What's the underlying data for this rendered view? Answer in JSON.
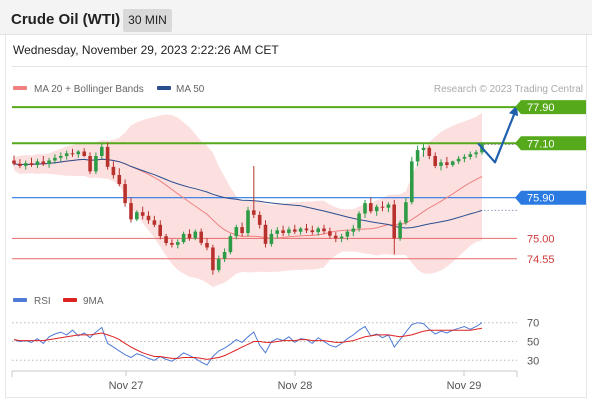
{
  "header": {
    "instrument": "Crude Oil (WTI)",
    "timeframe": "30 MIN",
    "datetime": "Wednesday, November 29, 2023 2:22:26 AM CET"
  },
  "legend": {
    "items": [
      {
        "label": "MA 20 + Bollinger Bands",
        "color": "#f08080"
      },
      {
        "label": "MA 50",
        "color": "#2a4f8f"
      }
    ],
    "credit": "Research © 2023 Trading Central"
  },
  "colors": {
    "up": "#2e9c46",
    "down": "#b8322d",
    "resistance": "#55a91a",
    "pivot": "#2a7ae2",
    "support": "#e86a6a",
    "forecast": "#1f5fae",
    "rsi": "#4f7bd6",
    "rsi_ma": "#dd2222",
    "band_fill": "#fbdada"
  },
  "chart_data": [
    {
      "type": "candlestick",
      "title": "",
      "x_tick_labels": [
        "Nov 27",
        "Nov 28",
        "Nov 29"
      ],
      "ylim": [
        73.95,
        78.1
      ],
      "levels": [
        {
          "label": "77.90",
          "value": 77.9,
          "kind": "resistance"
        },
        {
          "label": "77.10",
          "value": 77.1,
          "kind": "resistance"
        },
        {
          "label": "75.90",
          "value": 75.9,
          "kind": "pivot"
        },
        {
          "label": "75.00",
          "value": 75.0,
          "kind": "support"
        },
        {
          "label": "74.55",
          "value": 74.55,
          "kind": "support"
        }
      ],
      "current_price": 77.08,
      "forecast_path": [
        77.1,
        76.68,
        77.9
      ],
      "candles": [
        [
          76.72,
          76.83,
          76.61,
          76.65
        ],
        [
          76.65,
          76.75,
          76.55,
          76.6
        ],
        [
          76.6,
          76.72,
          76.52,
          76.66
        ],
        [
          76.66,
          76.78,
          76.58,
          76.62
        ],
        [
          76.62,
          76.76,
          76.55,
          76.7
        ],
        [
          76.7,
          76.82,
          76.6,
          76.64
        ],
        [
          76.64,
          76.78,
          76.56,
          76.72
        ],
        [
          76.72,
          76.86,
          76.65,
          76.78
        ],
        [
          76.78,
          76.9,
          76.7,
          76.82
        ],
        [
          76.82,
          76.94,
          76.74,
          76.88
        ],
        [
          76.88,
          76.98,
          76.8,
          76.86
        ],
        [
          76.86,
          76.95,
          76.78,
          76.92
        ],
        [
          76.92,
          76.99,
          76.8,
          76.82
        ],
        [
          76.82,
          76.9,
          76.42,
          76.48
        ],
        [
          76.48,
          76.9,
          76.42,
          76.82
        ],
        [
          76.82,
          77.1,
          76.75,
          77.02
        ],
        [
          77.02,
          77.12,
          76.52,
          76.58
        ],
        [
          76.58,
          76.7,
          76.32,
          76.4
        ],
        [
          76.4,
          76.55,
          76.15,
          76.2
        ],
        [
          76.2,
          76.3,
          75.7,
          75.78
        ],
        [
          75.78,
          75.9,
          75.35,
          75.42
        ],
        [
          75.42,
          75.62,
          75.38,
          75.58
        ],
        [
          75.58,
          75.7,
          75.42,
          75.5
        ],
        [
          75.5,
          75.6,
          75.32,
          75.4
        ],
        [
          75.4,
          75.5,
          75.25,
          75.3
        ],
        [
          75.3,
          75.4,
          74.98,
          75.05
        ],
        [
          75.05,
          75.1,
          74.84,
          74.9
        ],
        [
          74.9,
          74.98,
          74.8,
          74.86
        ],
        [
          74.86,
          74.98,
          74.78,
          74.92
        ],
        [
          74.92,
          75.15,
          74.88,
          75.1
        ],
        [
          75.1,
          75.2,
          74.95,
          75.0
        ],
        [
          75.0,
          75.2,
          74.96,
          75.15
        ],
        [
          75.15,
          75.22,
          74.85,
          74.9
        ],
        [
          74.9,
          75.0,
          74.74,
          74.8
        ],
        [
          74.8,
          74.86,
          74.2,
          74.3
        ],
        [
          74.3,
          74.62,
          74.25,
          74.55
        ],
        [
          74.55,
          74.78,
          74.48,
          74.7
        ],
        [
          74.7,
          75.1,
          74.65,
          75.05
        ],
        [
          75.05,
          75.3,
          74.98,
          75.25
        ],
        [
          75.25,
          75.35,
          75.05,
          75.12
        ],
        [
          75.12,
          75.7,
          75.05,
          75.62
        ],
        [
          75.62,
          76.6,
          75.45,
          75.52
        ],
        [
          75.52,
          75.6,
          75.22,
          75.3
        ],
        [
          75.3,
          75.4,
          74.8,
          74.88
        ],
        [
          74.88,
          75.2,
          74.82,
          75.1
        ],
        [
          75.1,
          75.25,
          75.0,
          75.18
        ],
        [
          75.18,
          75.28,
          75.05,
          75.12
        ],
        [
          75.12,
          75.26,
          75.06,
          75.2
        ],
        [
          75.2,
          75.3,
          75.1,
          75.15
        ],
        [
          75.15,
          75.25,
          75.08,
          75.22
        ],
        [
          75.22,
          75.32,
          75.12,
          75.18
        ],
        [
          75.18,
          75.28,
          75.08,
          75.14
        ],
        [
          75.14,
          75.26,
          75.06,
          75.22
        ],
        [
          75.22,
          75.3,
          75.1,
          75.16
        ],
        [
          75.16,
          75.24,
          75.0,
          75.06
        ],
        [
          75.06,
          75.14,
          74.92,
          75.0
        ],
        [
          75.0,
          75.1,
          74.92,
          75.04
        ],
        [
          75.04,
          75.2,
          74.96,
          75.15
        ],
        [
          75.15,
          75.3,
          75.05,
          75.22
        ],
        [
          75.22,
          75.6,
          75.15,
          75.55
        ],
        [
          75.55,
          75.85,
          75.45,
          75.78
        ],
        [
          75.78,
          75.9,
          75.55,
          75.6
        ],
        [
          75.6,
          75.75,
          75.5,
          75.7
        ],
        [
          75.7,
          75.82,
          75.6,
          75.68
        ],
        [
          75.68,
          75.8,
          75.58,
          75.75
        ],
        [
          75.75,
          75.85,
          74.65,
          75.0
        ],
        [
          75.0,
          75.4,
          74.95,
          75.35
        ],
        [
          75.35,
          75.9,
          75.3,
          75.8
        ],
        [
          75.8,
          76.8,
          75.75,
          76.7
        ],
        [
          76.7,
          77.05,
          76.6,
          76.95
        ],
        [
          76.95,
          77.08,
          76.8,
          77.0
        ],
        [
          77.0,
          77.05,
          76.75,
          76.82
        ],
        [
          76.82,
          76.9,
          76.55,
          76.6
        ],
        [
          76.6,
          76.75,
          76.5,
          76.68
        ],
        [
          76.68,
          76.8,
          76.55,
          76.62
        ],
        [
          76.62,
          76.72,
          76.58,
          76.7
        ],
        [
          76.7,
          76.82,
          76.64,
          76.76
        ],
        [
          76.76,
          76.86,
          76.68,
          76.8
        ],
        [
          76.8,
          76.92,
          76.74,
          76.86
        ],
        [
          76.86,
          76.95,
          76.78,
          76.9
        ],
        [
          76.9,
          77.12,
          76.85,
          77.08
        ]
      ]
    },
    {
      "type": "line",
      "title": "",
      "series": [
        {
          "name": "RSI",
          "values": [
            52,
            50,
            51,
            49,
            53,
            48,
            55,
            58,
            60,
            57,
            62,
            56,
            59,
            54,
            60,
            65,
            48,
            44,
            40,
            36,
            33,
            37,
            35,
            32,
            30,
            34,
            31,
            29,
            33,
            38,
            35,
            32,
            28,
            25,
            34,
            40,
            43,
            47,
            52,
            49,
            55,
            60,
            46,
            38,
            50,
            53,
            51,
            55,
            49,
            53,
            52,
            48,
            54,
            50,
            46,
            44,
            48,
            53,
            57,
            62,
            66,
            56,
            58,
            54,
            57,
            44,
            52,
            60,
            68,
            70,
            69,
            63,
            58,
            61,
            59,
            62,
            64,
            66,
            63,
            66,
            70
          ]
        },
        {
          "name": "9MA",
          "values": [
            52,
            51,
            51,
            51,
            51,
            51,
            52,
            53,
            54,
            55,
            56,
            57,
            57,
            57,
            58,
            59,
            57,
            55,
            52,
            48,
            44,
            41,
            38,
            36,
            34,
            34,
            33,
            32,
            32,
            33,
            33,
            33,
            32,
            31,
            32,
            33,
            35,
            38,
            41,
            44,
            47,
            50,
            50,
            49,
            49,
            50,
            51,
            51,
            51,
            52,
            52,
            51,
            51,
            51,
            50,
            49,
            49,
            50,
            51,
            53,
            55,
            56,
            57,
            57,
            57,
            56,
            55,
            56,
            57,
            59,
            61,
            62,
            62,
            62,
            62,
            62,
            62,
            62,
            62,
            63,
            64
          ]
        }
      ],
      "y_ticks": [
        "70",
        "50",
        "30"
      ],
      "ylim": [
        25,
        75
      ]
    }
  ]
}
